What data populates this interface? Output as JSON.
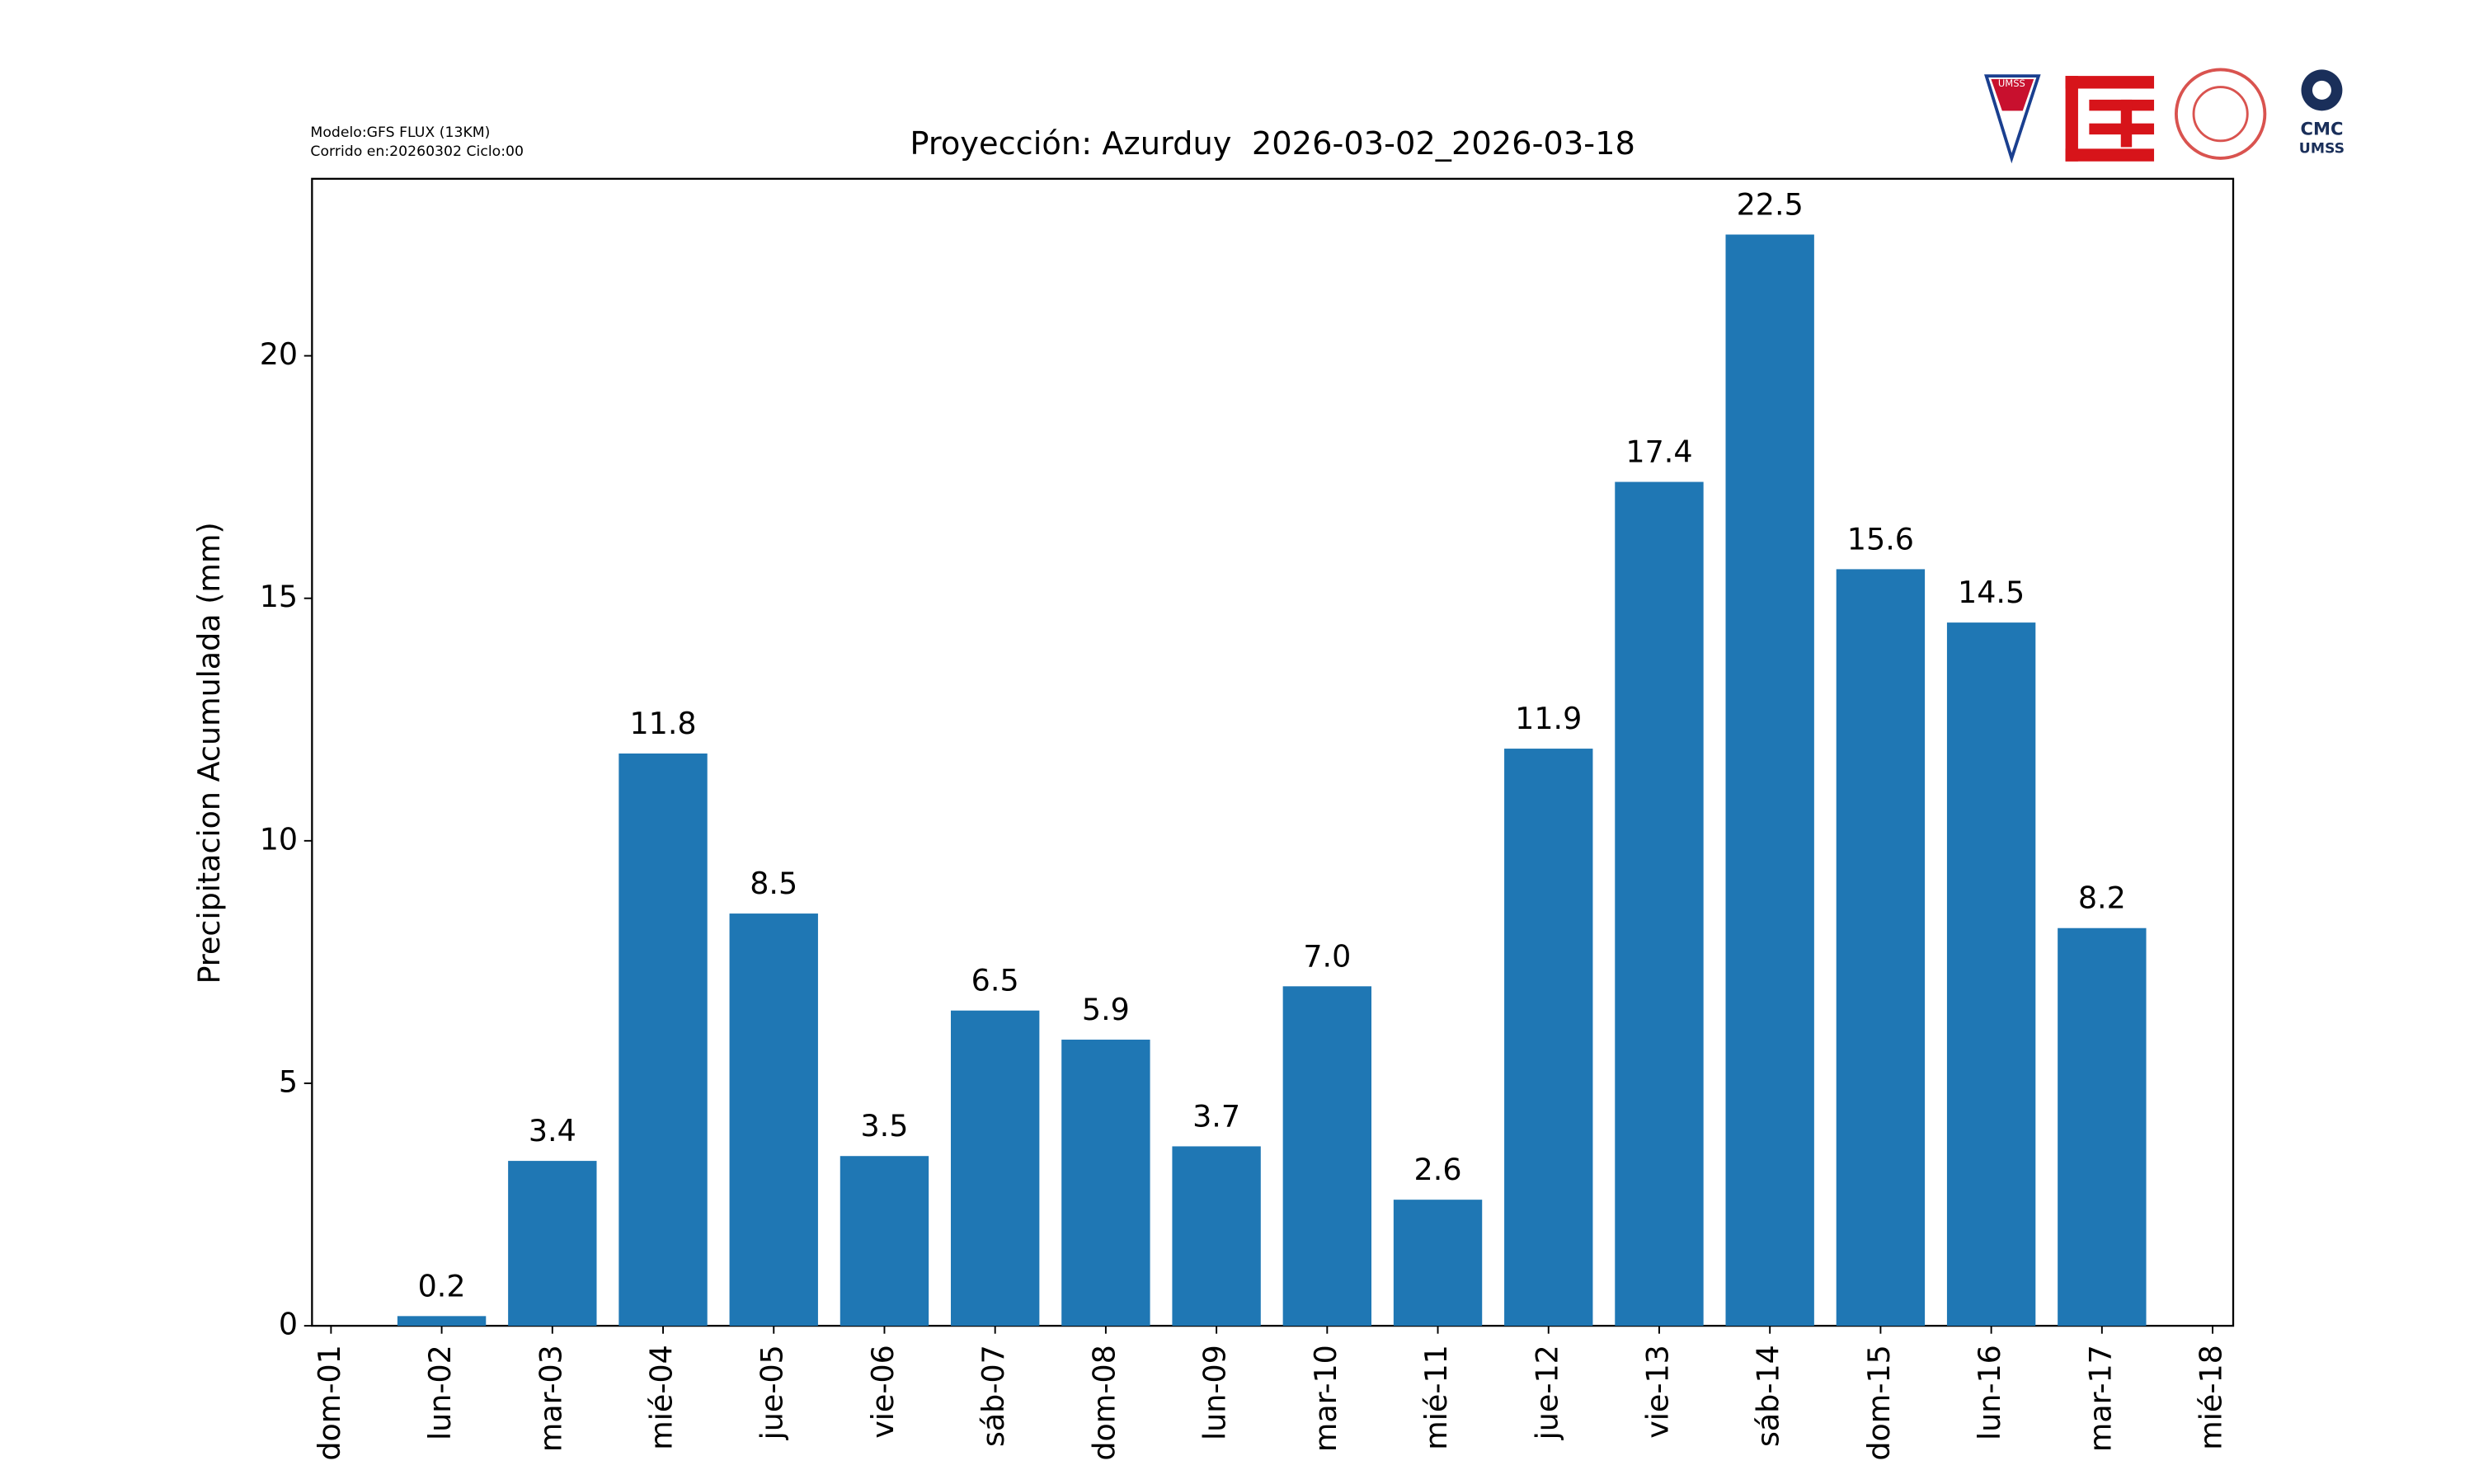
{
  "chart_data": {
    "type": "bar",
    "title": "Proyección: Azurduy  2026-03-02_2026-03-18",
    "notes": [
      "Modelo:GFS FLUX (13KM)",
      "Corrido en:20260302 Ciclo:00"
    ],
    "logos": {
      "shield": "UMSS",
      "cmc": "CMC",
      "cmc_sub": "UMSS"
    },
    "y_label": "Precipitacion Acumulada (mm)",
    "categories": [
      "dom-01",
      "lun-02",
      "mar-03",
      "mié-04",
      "jue-05",
      "vie-06",
      "sáb-07",
      "dom-08",
      "lun-09",
      "mar-10",
      "mié-11",
      "jue-12",
      "vie-13",
      "sáb-14",
      "dom-15",
      "lun-16",
      "mar-17",
      "mié-18"
    ],
    "values": [
      null,
      0.2,
      3.4,
      11.8,
      8.5,
      3.5,
      6.5,
      5.9,
      3.7,
      7.0,
      2.6,
      11.9,
      17.4,
      22.5,
      15.6,
      14.5,
      8.2,
      null
    ],
    "value_labels": [
      null,
      "0.2",
      "3.4",
      "11.8",
      "8.5",
      "3.5",
      "6.5",
      "5.9",
      "3.7",
      "7.0",
      "2.6",
      "11.9",
      "17.4",
      "22.5",
      "15.6",
      "14.5",
      "8.2",
      null
    ],
    "color": "#1f77b4",
    "ylim": [
      0,
      23.65
    ],
    "yticks": [
      0,
      5,
      10,
      15,
      20
    ],
    "grid": false
  }
}
